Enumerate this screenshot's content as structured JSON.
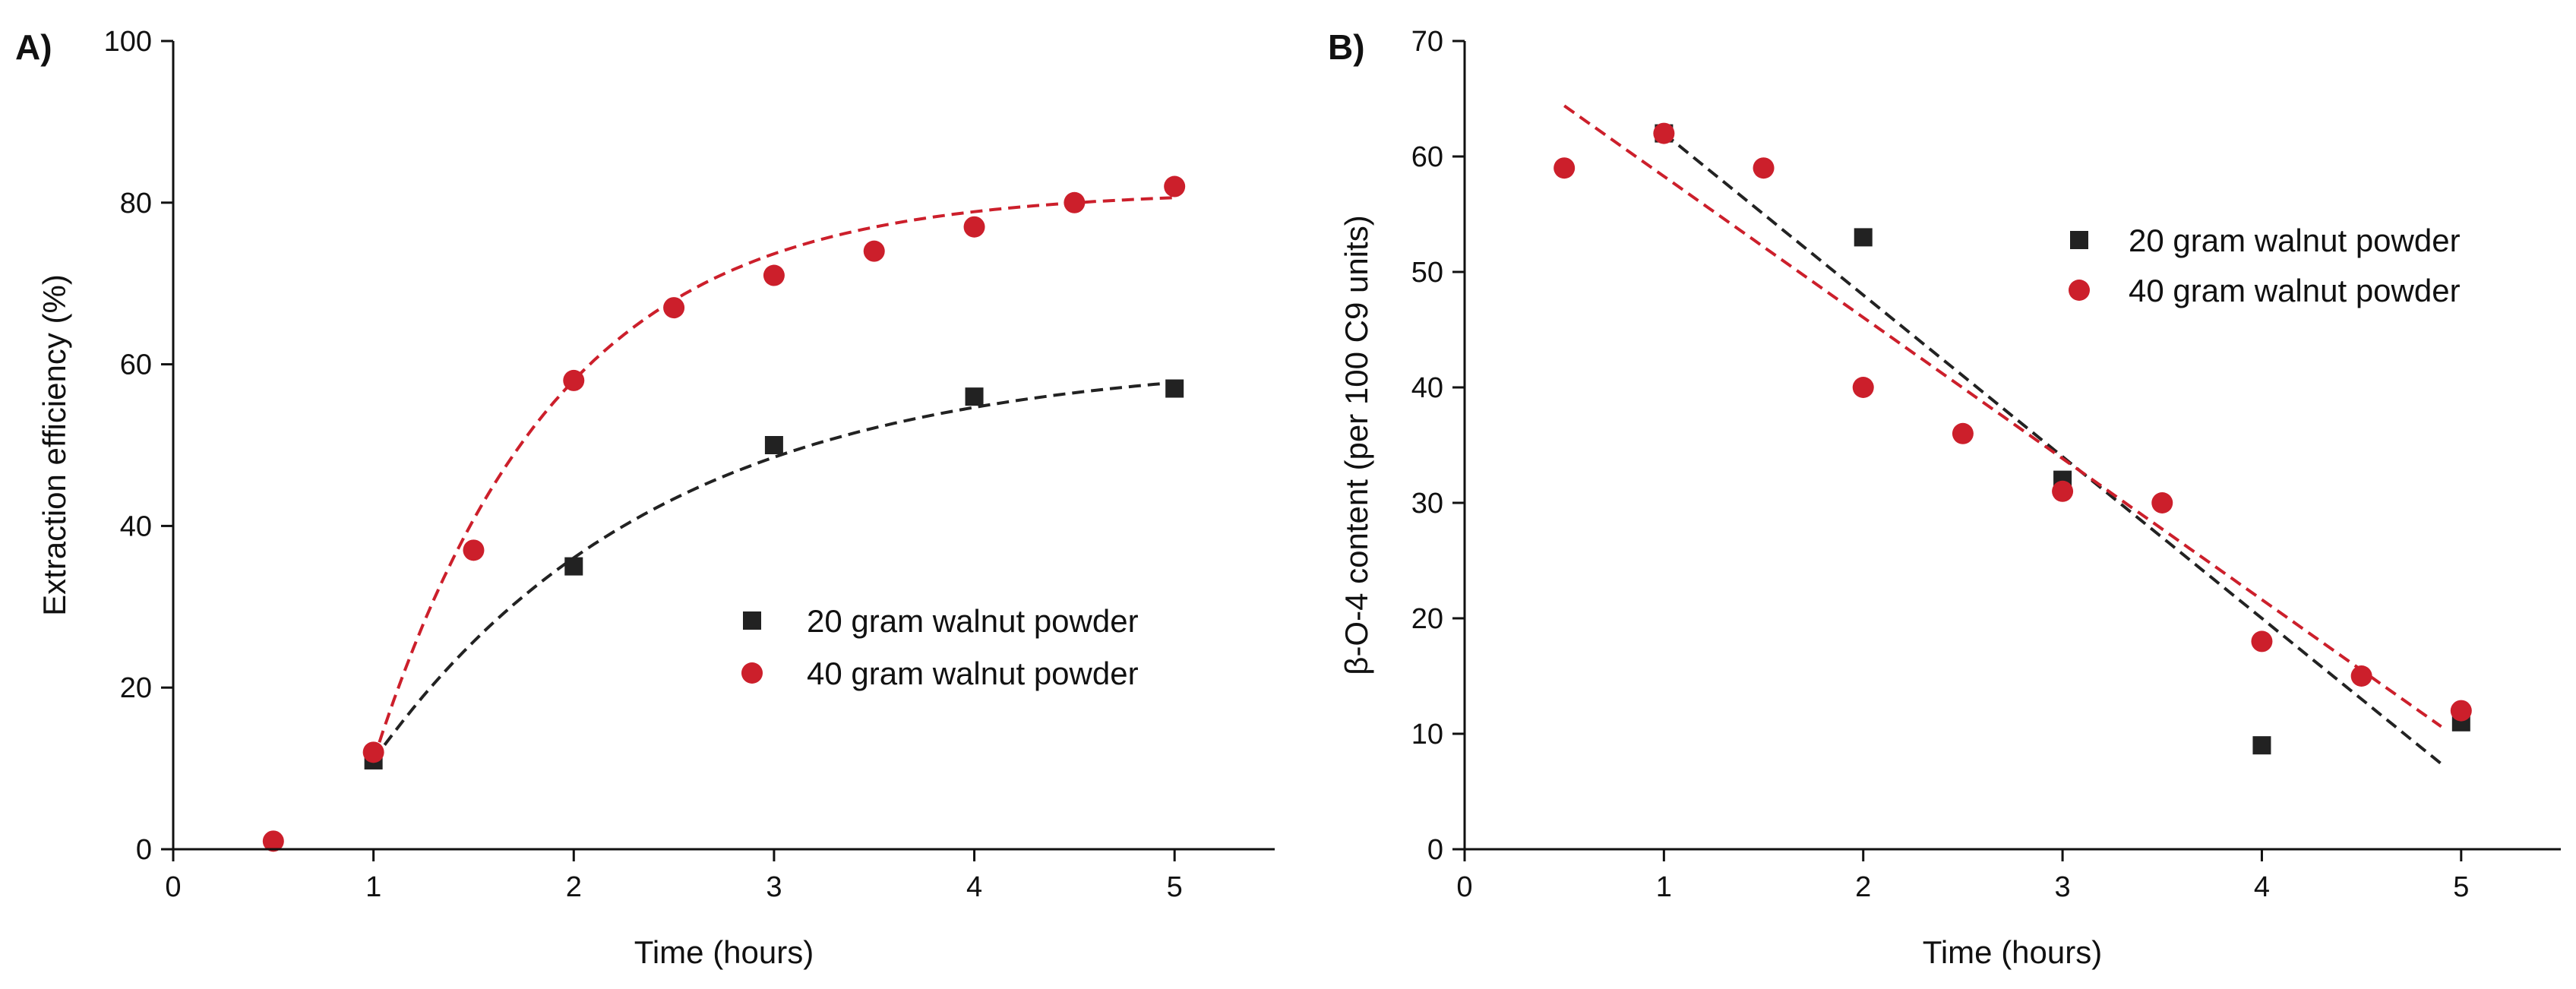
{
  "chart_data": [
    {
      "id": "A",
      "type": "scatter",
      "panel_label": "A)",
      "xlabel": "Time (hours)",
      "ylabel": "Extraction efficiency (%)",
      "xlim": [
        0,
        5.5
      ],
      "ylim": [
        0,
        100
      ],
      "xticks": [
        0,
        1,
        2,
        3,
        4,
        5
      ],
      "yticks": [
        0,
        20,
        40,
        60,
        80,
        100
      ],
      "legend_position": "middle-right",
      "series": [
        {
          "name": "20 gram walnut powder",
          "marker": "square",
          "color": "#222222",
          "fit_color": "#222222",
          "x": [
            1,
            2,
            3,
            4,
            5
          ],
          "y": [
            11,
            35,
            50,
            56,
            57
          ],
          "fit": {
            "model": "exponential",
            "asymptote": 60.77,
            "amplitude": 49.77,
            "rate": 0.7,
            "x0": 1,
            "x_range": [
              1,
              5
            ]
          }
        },
        {
          "name": "40 gram walnut powder",
          "marker": "circle",
          "color": "#cc1f2b",
          "fit_color": "#cc1f2b",
          "x": [
            0.5,
            1,
            1.5,
            2,
            2.5,
            3,
            3.5,
            4,
            4.5,
            5
          ],
          "y": [
            1,
            12,
            37,
            58,
            67,
            71,
            74,
            77,
            80,
            82
          ],
          "fit": {
            "model": "exponential",
            "asymptote": 81.48,
            "amplitude": 70.48,
            "rate": 1.1,
            "x0": 1,
            "x_range": [
              1,
              5
            ]
          }
        }
      ]
    },
    {
      "id": "B",
      "type": "scatter",
      "panel_label": "B)",
      "xlabel": "Time (hours)",
      "ylabel": "β-O-4 content (per 100 C9 units)",
      "xlim": [
        0,
        5.5
      ],
      "ylim": [
        0,
        70
      ],
      "xticks": [
        0,
        1,
        2,
        3,
        4,
        5
      ],
      "yticks": [
        0,
        10,
        20,
        30,
        40,
        50,
        60,
        70
      ],
      "legend_position": "top-right",
      "series": [
        {
          "name": "20 gram walnut powder",
          "marker": "square",
          "color": "#222222",
          "fit_color": "#222222",
          "x": [
            1,
            2,
            3,
            4,
            5
          ],
          "y": [
            62,
            53,
            32,
            9,
            11
          ],
          "fit": {
            "model": "linear",
            "slope": -14.0,
            "intercept": 76.0,
            "x_range": [
              1,
              4.9
            ]
          }
        },
        {
          "name": "40 gram walnut powder",
          "marker": "circle",
          "color": "#cc1f2b",
          "fit_color": "#cc1f2b",
          "x": [
            0.5,
            1,
            1.5,
            2,
            2.5,
            3,
            3.5,
            4,
            4.5,
            5
          ],
          "y": [
            59,
            62,
            59,
            40,
            36,
            31,
            30,
            18,
            15,
            12
          ],
          "fit": {
            "model": "linear",
            "slope": -12.22,
            "intercept": 70.5,
            "x_range": [
              0.5,
              4.9
            ]
          }
        }
      ]
    }
  ]
}
